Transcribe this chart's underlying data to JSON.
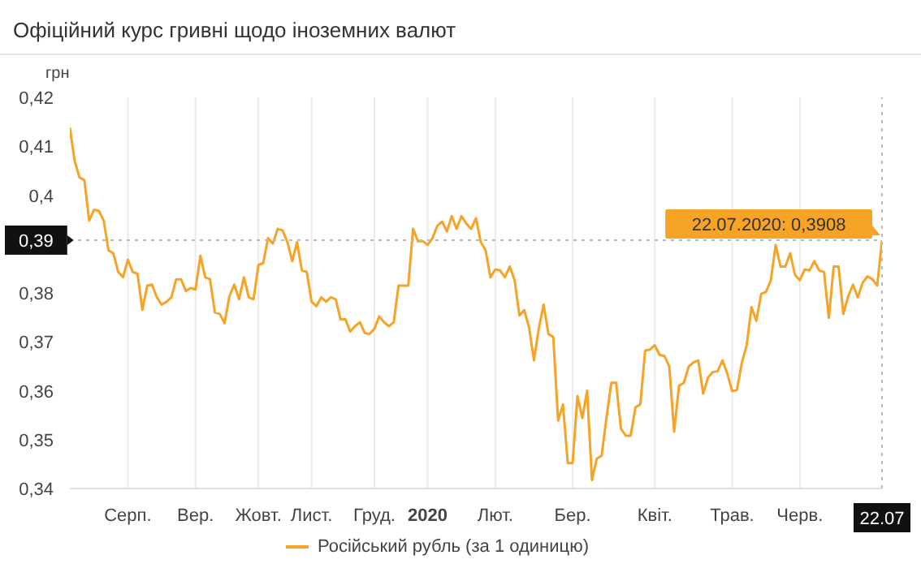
{
  "chart_data": {
    "type": "line",
    "title": "Офіційний курс гривні щодо іноземних валют",
    "ylabel": "грн",
    "categories": [
      null,
      null,
      null,
      null,
      null,
      null,
      null,
      null,
      null,
      null,
      null,
      null,
      "Серп.",
      null,
      null,
      null,
      null,
      null,
      null,
      null,
      null,
      null,
      null,
      null,
      null,
      null,
      "Вер.",
      null,
      null,
      null,
      null,
      null,
      null,
      null,
      null,
      null,
      null,
      null,
      null,
      "Жовт.",
      null,
      null,
      null,
      null,
      null,
      null,
      null,
      null,
      null,
      null,
      "Лист.",
      null,
      null,
      null,
      null,
      null,
      null,
      null,
      null,
      null,
      null,
      null,
      null,
      "Груд.",
      null,
      null,
      null,
      null,
      null,
      null,
      null,
      null,
      null,
      null,
      "2020",
      null,
      null,
      null,
      null,
      null,
      null,
      null,
      null,
      null,
      null,
      null,
      null,
      null,
      "Лют.",
      null,
      null,
      null,
      null,
      null,
      null,
      null,
      null,
      null,
      null,
      null,
      null,
      null,
      null,
      null,
      "Бер.",
      null,
      null,
      null,
      null,
      null,
      null,
      null,
      null,
      null,
      null,
      null,
      null,
      null,
      null,
      null,
      null,
      "Квіт.",
      null,
      null,
      null,
      null,
      null,
      null,
      null,
      null,
      null,
      null,
      null,
      null,
      null,
      null,
      null,
      "Трав.",
      null,
      null,
      null,
      null,
      null,
      null,
      null,
      null,
      null,
      null,
      null,
      null,
      null,
      "Черв.",
      null,
      null,
      null,
      null,
      null,
      null,
      null,
      null,
      null,
      null,
      null,
      null,
      null,
      null,
      null,
      null,
      "22.07"
    ],
    "series": [
      {
        "name": "Російський рубль (за 1 одиницю)",
        "color": "#f7a325",
        "values": [
          0.4138,
          0.407,
          0.4036,
          0.4031,
          0.3948,
          0.397,
          0.3968,
          0.3948,
          0.3887,
          0.3881,
          0.3843,
          0.3832,
          0.3868,
          0.3843,
          0.3839,
          0.3765,
          0.3815,
          0.3817,
          0.3791,
          0.3776,
          0.3782,
          0.3791,
          0.3828,
          0.3828,
          0.3804,
          0.381,
          0.3807,
          0.3876,
          0.3832,
          0.3828,
          0.376,
          0.3757,
          0.3738,
          0.3793,
          0.3817,
          0.3787,
          0.3832,
          0.3791,
          0.3787,
          0.3857,
          0.3861,
          0.3912,
          0.3901,
          0.3931,
          0.3928,
          0.3904,
          0.3865,
          0.3904,
          0.3846,
          0.3843,
          0.3782,
          0.3773,
          0.3791,
          0.3782,
          0.3791,
          0.3787,
          0.3746,
          0.3746,
          0.3721,
          0.3732,
          0.374,
          0.3718,
          0.3716,
          0.3727,
          0.3752,
          0.374,
          0.3732,
          0.374,
          0.3815,
          0.3815,
          0.3815,
          0.3931,
          0.3906,
          0.3906,
          0.3898,
          0.3912,
          0.3937,
          0.3946,
          0.3926,
          0.3957,
          0.3931,
          0.3957,
          0.3942,
          0.3931,
          0.3953,
          0.3904,
          0.3887,
          0.3832,
          0.3848,
          0.3846,
          0.3832,
          0.3854,
          0.3826,
          0.3754,
          0.3765,
          0.3729,
          0.3662,
          0.3727,
          0.3776,
          0.3716,
          0.371,
          0.3539,
          0.3572,
          0.3452,
          0.3452,
          0.3589,
          0.3544,
          0.36,
          0.3417,
          0.3461,
          0.3467,
          0.3544,
          0.3616,
          0.3616,
          0.3522,
          0.3508,
          0.3508,
          0.3566,
          0.3572,
          0.3682,
          0.3684,
          0.3693,
          0.3673,
          0.3671,
          0.3649,
          0.3516,
          0.361,
          0.3616,
          0.3649,
          0.3658,
          0.3662,
          0.3594,
          0.3627,
          0.3638,
          0.364,
          0.3662,
          0.3635,
          0.3599,
          0.3602,
          0.3657,
          0.3693,
          0.3771,
          0.3743,
          0.3798,
          0.3802,
          0.3826,
          0.3898,
          0.3854,
          0.3854,
          0.3881,
          0.3837,
          0.3826,
          0.3848,
          0.3846,
          0.3865,
          0.3846,
          0.3843,
          0.3749,
          0.3854,
          0.3854,
          0.3757,
          0.3793,
          0.3817,
          0.3791,
          0.3821,
          0.3834,
          0.3828,
          0.3815,
          0.3908
        ]
      }
    ],
    "ylim": [
      0.34,
      0.42
    ],
    "yticks": [
      {
        "value": 0.34,
        "label": "0,34"
      },
      {
        "value": 0.35,
        "label": "0,35"
      },
      {
        "value": 0.36,
        "label": "0,36"
      },
      {
        "value": 0.37,
        "label": "0,37"
      },
      {
        "value": 0.38,
        "label": "0,38"
      },
      {
        "value": 0.4,
        "label": "0,4"
      },
      {
        "value": 0.41,
        "label": "0,41"
      },
      {
        "value": 0.42,
        "label": "0,42"
      }
    ],
    "ref_lines": [
      {
        "axis": "y",
        "value": 0.3908,
        "label": "0,39",
        "color": "#bbbbbb",
        "line_style": "dotted"
      },
      {
        "axis": "x",
        "value": "22.07",
        "color": "#bbbbbb",
        "line_style": "dotted"
      }
    ],
    "annotations": [
      {
        "text": "22.07.2020: 0,3908",
        "x": "22.07",
        "y": 0.3908
      }
    ],
    "grid": true,
    "legend": "bottom"
  }
}
